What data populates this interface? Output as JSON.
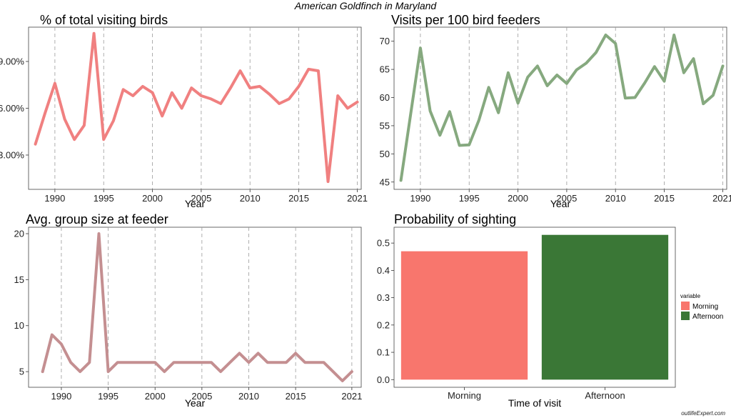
{
  "page": {
    "title": "American Goldfinch in Maryland",
    "watermark": "outlifeExpert.com"
  },
  "chart_data": [
    {
      "type": "line",
      "title": "% of total visiting birds",
      "xlabel": "Year",
      "ylabel": "",
      "color": "#F08080",
      "x": [
        1988,
        1989,
        1990,
        1991,
        1992,
        1993,
        1994,
        1995,
        1996,
        1997,
        1998,
        1999,
        2000,
        2001,
        2002,
        2003,
        2004,
        2005,
        2006,
        2007,
        2008,
        2009,
        2010,
        2011,
        2012,
        2013,
        2014,
        2015,
        2016,
        2017,
        2018,
        2019,
        2020,
        2021
      ],
      "values": [
        3.7,
        5.7,
        7.6,
        5.3,
        4.0,
        4.9,
        10.8,
        4.0,
        5.2,
        7.2,
        6.8,
        7.4,
        7.0,
        5.5,
        7.0,
        6.0,
        7.3,
        6.8,
        6.6,
        6.3,
        7.3,
        8.4,
        7.3,
        7.4,
        6.9,
        6.3,
        6.6,
        7.4,
        8.5,
        8.4,
        1.3,
        6.8,
        6.0,
        6.4
      ],
      "xticks": [
        1990,
        1995,
        2000,
        2005,
        2010,
        2015,
        2021
      ],
      "yticks": [
        3,
        6,
        9
      ],
      "ytick_labels": [
        "3.00%",
        "6.00%",
        "9.00%"
      ],
      "xlim": [
        1987.3,
        2021.4
      ],
      "ylim": [
        0.8,
        11.2
      ],
      "grid": "x-dashed"
    },
    {
      "type": "line",
      "title": "Visits per 100 bird feeders",
      "xlabel": "Year",
      "ylabel": "",
      "color": "#86A97F",
      "x": [
        1988,
        1989,
        1990,
        1991,
        1992,
        1993,
        1994,
        1995,
        1996,
        1997,
        1998,
        1999,
        2000,
        2001,
        2002,
        2003,
        2004,
        2005,
        2006,
        2007,
        2008,
        2009,
        2010,
        2011,
        2012,
        2013,
        2014,
        2015,
        2016,
        2017,
        2018,
        2019,
        2020,
        2021
      ],
      "values": [
        45.3,
        57.0,
        68.8,
        57.6,
        53.3,
        57.5,
        51.5,
        51.6,
        56.0,
        61.8,
        57.3,
        64.4,
        59.0,
        63.6,
        65.6,
        62.1,
        64.0,
        62.5,
        64.9,
        66.1,
        68.0,
        71.1,
        69.6,
        59.9,
        60.0,
        62.6,
        65.5,
        62.9,
        71.1,
        64.4,
        66.9,
        58.9,
        60.4,
        65.6
      ],
      "xticks": [
        1990,
        1995,
        2000,
        2005,
        2010,
        2015,
        2021
      ],
      "yticks": [
        45,
        50,
        55,
        60,
        65,
        70
      ],
      "ytick_labels": [
        "45",
        "50",
        "55",
        "60",
        "65",
        "70"
      ],
      "xlim": [
        1987.3,
        2021.4
      ],
      "ylim": [
        43.7,
        72.5
      ],
      "grid": "x-dashed"
    },
    {
      "type": "line",
      "title": "Avg. group size at feeder",
      "xlabel": "Year",
      "ylabel": "",
      "color": "#C48F91",
      "x": [
        1988,
        1989,
        1990,
        1991,
        1992,
        1993,
        1994,
        1995,
        1996,
        1997,
        1998,
        1999,
        2000,
        2001,
        2002,
        2003,
        2004,
        2005,
        2006,
        2007,
        2008,
        2009,
        2010,
        2011,
        2012,
        2013,
        2014,
        2015,
        2016,
        2017,
        2018,
        2019,
        2020,
        2021
      ],
      "values": [
        5,
        9,
        8,
        6,
        5,
        6,
        20,
        5,
        6,
        6,
        6,
        6,
        6,
        5,
        6,
        6,
        6,
        6,
        6,
        5,
        6,
        7,
        6,
        7,
        6,
        6,
        6,
        7,
        6,
        6,
        6,
        5,
        4,
        5
      ],
      "xticks": [
        1990,
        1995,
        2000,
        2005,
        2010,
        2015,
        2021
      ],
      "yticks": [
        5,
        10,
        15,
        20
      ],
      "ytick_labels": [
        "5",
        "10",
        "15",
        "20"
      ],
      "xlim": [
        1986.5,
        2022.0
      ],
      "ylim": [
        3.3,
        20.7
      ],
      "grid": "x-dashed"
    },
    {
      "type": "bar",
      "title": "Probability of sighting",
      "xlabel": "Time of visit",
      "ylabel": "",
      "categories": [
        "Morning",
        "Afternoon"
      ],
      "values": [
        0.47,
        0.53
      ],
      "colors": [
        "#F8766D",
        "#3A7736"
      ],
      "yticks": [
        0.0,
        0.1,
        0.2,
        0.3,
        0.4,
        0.5
      ],
      "ytick_labels": [
        "0.0",
        "0.1",
        "0.2",
        "0.3",
        "0.4",
        "0.5"
      ],
      "ylim": [
        -0.028,
        0.558
      ],
      "legend": {
        "title": "variable",
        "position": "right",
        "items": [
          {
            "label": "Morning",
            "color": "#F8766D"
          },
          {
            "label": "Afternoon",
            "color": "#3A7736"
          }
        ]
      },
      "grid": "none"
    }
  ]
}
